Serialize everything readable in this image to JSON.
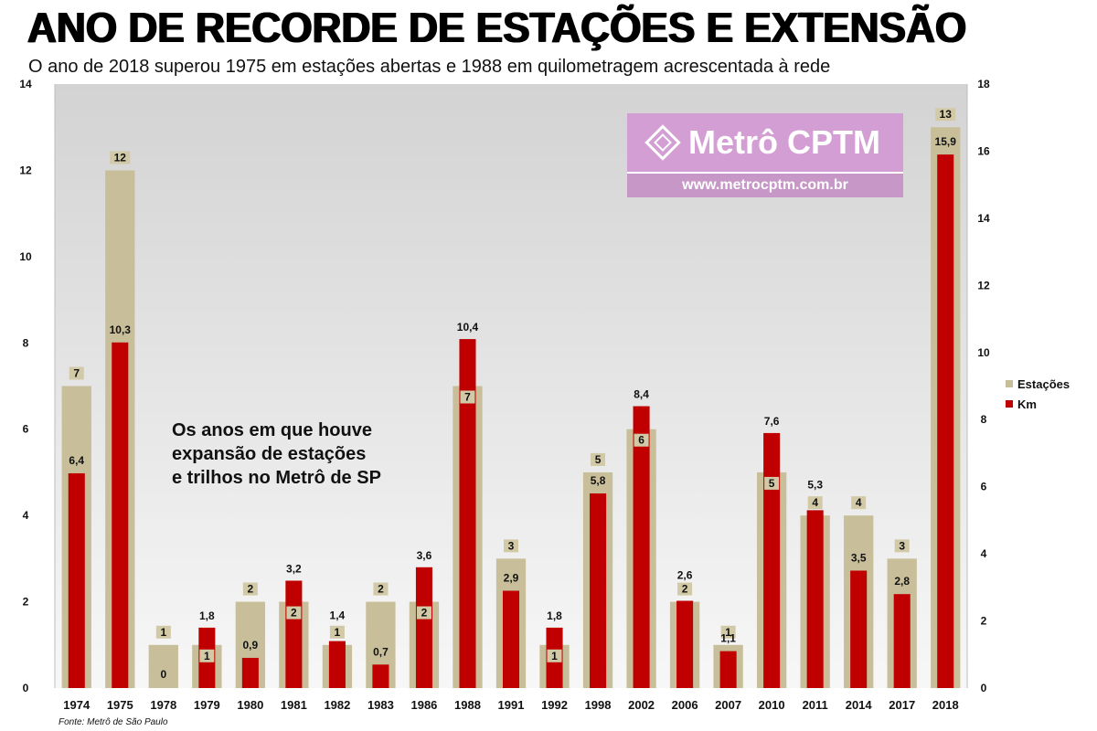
{
  "title": "ANO DE RECORDE DE ESTAÇÕES E EXTENSÃO",
  "subtitle": "O ano de 2018 superou 1975 em estações abertas e 1988 em quilometragem acrescentada à rede",
  "annotation": "Os anos em que houve\nexpansão de estações\ne trilhos no Metrô de SP",
  "logo": {
    "name": "Metrô CPTM",
    "url": "www.metrocptm.com.br"
  },
  "source": "Fonte: Metrô de São Paulo",
  "colors": {
    "estacoes": "#c8bf9a",
    "km": "#c00000",
    "label_box": "#d2c9a6",
    "plot_top": "#d3d3d3",
    "plot_bottom": "#f7f7f7"
  },
  "chart_data": {
    "type": "bar",
    "categories": [
      "1974",
      "1975",
      "1978",
      "1979",
      "1980",
      "1981",
      "1982",
      "1983",
      "1986",
      "1988",
      "1991",
      "1992",
      "1998",
      "2002",
      "2006",
      "2007",
      "2010",
      "2011",
      "2014",
      "2017",
      "2018"
    ],
    "series": [
      {
        "name": "Estações",
        "axis": "left",
        "values": [
          7,
          12,
          1,
          1,
          2,
          2,
          1,
          2,
          2,
          7,
          3,
          1,
          5,
          6,
          2,
          1,
          5,
          4,
          4,
          3,
          13
        ],
        "labels": [
          "7",
          "12",
          "1",
          "1",
          "2",
          "2",
          "1",
          "2",
          "2",
          "7",
          "3",
          "1",
          "5",
          "6",
          "2",
          "1",
          "5",
          "4",
          "4",
          "3",
          "13"
        ]
      },
      {
        "name": "Km",
        "axis": "right",
        "values": [
          6.4,
          10.3,
          0,
          1.8,
          0.9,
          3.2,
          1.4,
          0.7,
          3.6,
          10.4,
          2.9,
          1.8,
          5.8,
          8.4,
          2.6,
          1.1,
          7.6,
          5.3,
          3.5,
          2.8,
          15.9
        ],
        "labels": [
          "6,4",
          "10,3",
          "0",
          "1,8",
          "0,9",
          "3,2",
          "1,4",
          "0,7",
          "3,6",
          "10,4",
          "2,9",
          "1,8",
          "5,8",
          "8,4",
          "2,6",
          "1,1",
          "7,6",
          "5,3",
          "3,5",
          "2,8",
          "15,9"
        ]
      }
    ],
    "left_axis": {
      "ylim": [
        0,
        14
      ],
      "ticks": [
        "0",
        "2",
        "4",
        "6",
        "8",
        "10",
        "12",
        "14"
      ]
    },
    "right_axis": {
      "ylim": [
        0,
        18
      ],
      "ticks": [
        "0",
        "2",
        "4",
        "6",
        "8",
        "10",
        "12",
        "14",
        "16",
        "18"
      ]
    },
    "legend": {
      "position": "right",
      "entries": [
        "Estações",
        "Km"
      ]
    },
    "grid": false
  }
}
